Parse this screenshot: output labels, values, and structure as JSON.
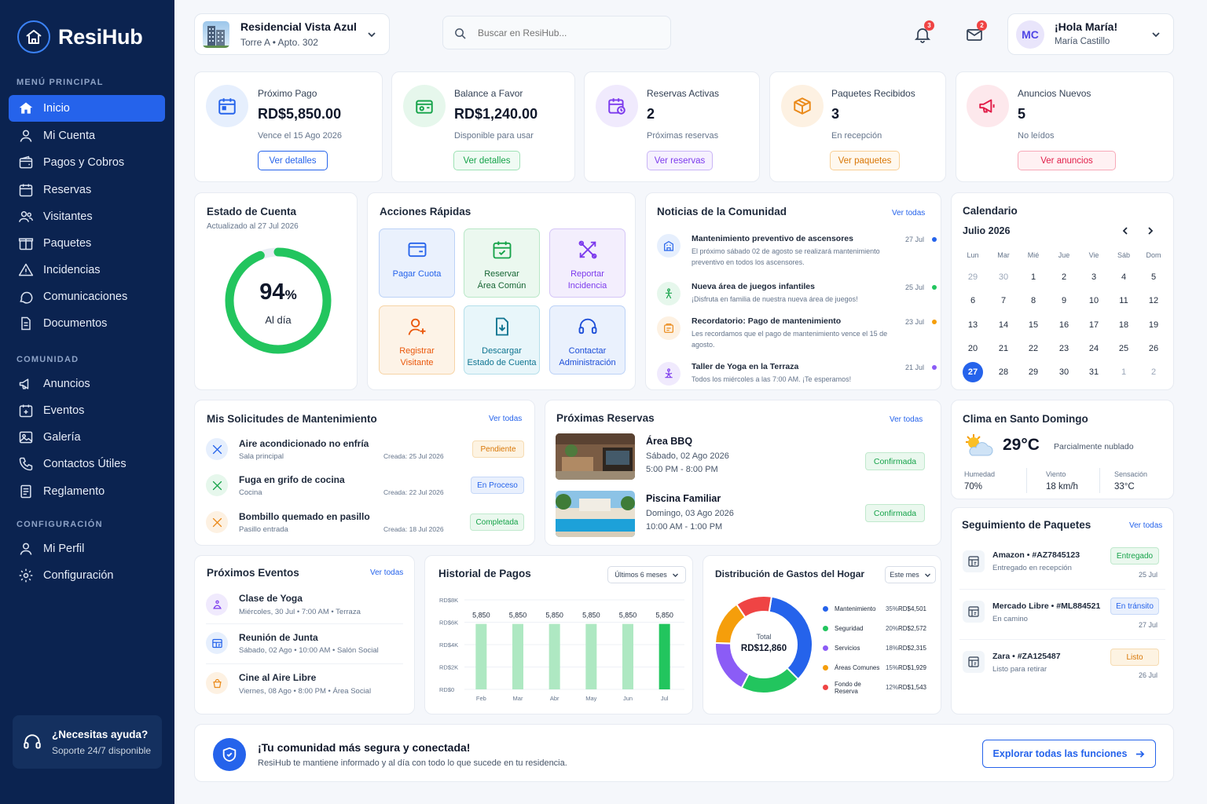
{
  "app": {
    "name": "ResiHub"
  },
  "sidebar": {
    "sections": {
      "main": "MENÚ PRINCIPAL",
      "community": "COMUNIDAD",
      "config": "CONFIGURACIÓN"
    },
    "main_items": [
      {
        "label": "Inicio",
        "icon": "home-icon",
        "active": true
      },
      {
        "label": "Mi Cuenta",
        "icon": "user-icon"
      },
      {
        "label": "Pagos y Cobros",
        "icon": "wallet-icon"
      },
      {
        "label": "Reservas",
        "icon": "calendar-icon"
      },
      {
        "label": "Visitantes",
        "icon": "users-icon"
      },
      {
        "label": "Paquetes",
        "icon": "package-icon"
      },
      {
        "label": "Incidencias",
        "icon": "warning-icon"
      },
      {
        "label": "Comunicaciones",
        "icon": "chat-icon"
      },
      {
        "label": "Documentos",
        "icon": "document-icon"
      }
    ],
    "community_items": [
      {
        "label": "Anuncios",
        "icon": "megaphone-icon"
      },
      {
        "label": "Eventos",
        "icon": "event-icon"
      },
      {
        "label": "Galería",
        "icon": "image-icon"
      },
      {
        "label": "Contactos Útiles",
        "icon": "phone-icon"
      },
      {
        "label": "Reglamento",
        "icon": "rules-icon"
      }
    ],
    "config_items": [
      {
        "label": "Mi Perfil",
        "icon": "profile-icon"
      },
      {
        "label": "Configuración",
        "icon": "gear-icon"
      }
    ],
    "help": {
      "title": "¿Necesitas ayuda?",
      "subtitle": "Soporte 24/7 disponible"
    }
  },
  "header": {
    "residence": {
      "name": "Residencial Vista Azul",
      "unit": "Torre A • Apto. 302"
    },
    "search_placeholder": "Buscar en ResiHub...",
    "notifications_count": "3",
    "messages_count": "2",
    "user": {
      "initials": "MC",
      "greeting": "¡Hola María!",
      "name": "María Castillo"
    }
  },
  "stats": [
    {
      "label": "Próximo Pago",
      "value": "RD$5,850.00",
      "sub": "Vence el 15 Ago 2026",
      "button": "Ver detalles",
      "color": "#2563eb"
    },
    {
      "label": "Balance a Favor",
      "value": "RD$1,240.00",
      "sub": "Disponible para usar",
      "button": "Ver detalles",
      "color": "#16a34a"
    },
    {
      "label": "Reservas Activas",
      "value": "2",
      "sub": "Próximas reservas",
      "button": "Ver reservas",
      "color": "#7c3aed"
    },
    {
      "label": "Paquetes Recibidos",
      "value": "3",
      "sub": "En recepción",
      "button": "Ver paquetes",
      "color": "#ea8a1a"
    },
    {
      "label": "Anuncios Nuevos",
      "value": "5",
      "sub": "No leídos",
      "button": "Ver anuncios",
      "color": "#e11d48"
    }
  ],
  "account_status": {
    "title": "Estado de Cuenta",
    "updated": "Actualizado al 27 Jul 2026",
    "percent": 94,
    "percent_text": "94",
    "percent_sign": "%",
    "caption": "Al día"
  },
  "quick_actions": {
    "title": "Acciones Rápidas",
    "items": [
      {
        "line1": "Pagar Cuota",
        "line2": "",
        "icon": "credit-card-icon"
      },
      {
        "line1": "Reservar",
        "line2": "Área Común",
        "icon": "calendar-check-icon"
      },
      {
        "line1": "Reportar",
        "line2": "Incidencia",
        "icon": "tools-icon"
      },
      {
        "line1": "Registrar",
        "line2": "Visitante",
        "icon": "user-plus-icon"
      },
      {
        "line1": "Descargar",
        "line2": "Estado de Cuenta",
        "icon": "download-icon"
      },
      {
        "line1": "Contactar",
        "line2": "Administración",
        "icon": "headset-icon"
      }
    ]
  },
  "news": {
    "title": "Noticias de la Comunidad",
    "link": "Ver todas",
    "items": [
      {
        "title": "Mantenimiento preventivo de ascensores",
        "body": "El próximo sábado 02 de agosto se realizará mantenimiento preventivo en todos los ascensores.",
        "date": "27 Jul",
        "color": "#2563eb"
      },
      {
        "title": "Nueva área de juegos infantiles",
        "body": "¡Disfruta en familia de nuestra nueva área de juegos!",
        "date": "25 Jul",
        "color": "#22c55e"
      },
      {
        "title": "Recordatorio: Pago de mantenimiento",
        "body": "Les recordamos que el pago de mantenimiento vence el 15 de agosto.",
        "date": "23 Jul",
        "color": "#f59e0b"
      },
      {
        "title": "Taller de Yoga en la Terraza",
        "body": "Todos los miércoles a las 7:00 AM. ¡Te esperamos!",
        "date": "21 Jul",
        "color": "#8b5cf6"
      }
    ]
  },
  "calendar": {
    "title": "Calendario",
    "month": "Julio 2026",
    "weekdays": [
      "Lun",
      "Mar",
      "Mié",
      "Jue",
      "Vie",
      "Sáb",
      "Dom"
    ],
    "days": [
      "29",
      "30",
      "1",
      "2",
      "3",
      "4",
      "5",
      "6",
      "7",
      "8",
      "9",
      "10",
      "11",
      "12",
      "13",
      "14",
      "15",
      "16",
      "17",
      "18",
      "19",
      "20",
      "21",
      "22",
      "23",
      "24",
      "25",
      "26",
      "27",
      "28",
      "29",
      "30",
      "31",
      "1",
      "2"
    ],
    "muted_indices": [
      0,
      1,
      33,
      34
    ],
    "today_index": 28
  },
  "maintenance": {
    "title": "Mis Solicitudes de Mantenimiento",
    "link": "Ver todas",
    "items": [
      {
        "title": "Aire acondicionado no enfría",
        "location": "Sala principal",
        "created": "Creada: 25 Jul 2026",
        "status": "Pendiente"
      },
      {
        "title": "Fuga en grifo de cocina",
        "location": "Cocina",
        "created": "Creada: 22 Jul 2026",
        "status": "En Proceso"
      },
      {
        "title": "Bombillo quemado en pasillo",
        "location": "Pasillo entrada",
        "created": "Creada: 18 Jul 2026",
        "status": "Completada"
      }
    ]
  },
  "reservations": {
    "title": "Próximas Reservas",
    "link": "Ver todas",
    "items": [
      {
        "name": "Área BBQ",
        "date": "Sábado, 02 Ago 2026",
        "time": "5:00 PM - 8:00 PM",
        "status": "Confirmada"
      },
      {
        "name": "Piscina Familiar",
        "date": "Domingo, 03 Ago 2026",
        "time": "10:00 AM - 1:00 PM",
        "status": "Confirmada"
      }
    ]
  },
  "weather": {
    "title": "Clima en Santo Domingo",
    "temp": "29°C",
    "desc": "Parcialmente nublado",
    "stats": [
      {
        "label": "Humedad",
        "value": "70%"
      },
      {
        "label": "Viento",
        "value": "18 km/h"
      },
      {
        "label": "Sensación",
        "value": "33°C"
      }
    ]
  },
  "events": {
    "title": "Próximos Eventos",
    "link": "Ver todas",
    "items": [
      {
        "title": "Clase de Yoga",
        "when": "Miércoles, 30 Jul • 7:00 AM • Terraza"
      },
      {
        "title": "Reunión de Junta",
        "when": "Sábado, 02 Ago • 10:00 AM • Salón Social"
      },
      {
        "title": "Cine al Aire Libre",
        "when": "Viernes, 08 Ago • 8:00 PM • Área Social"
      }
    ]
  },
  "payments_chart": {
    "title": "Historial de Pagos",
    "filter": "Últimos 6 meses"
  },
  "chart_data": [
    {
      "type": "bar",
      "title": "Historial de Pagos",
      "categories": [
        "Feb",
        "Mar",
        "Abr",
        "May",
        "Jun",
        "Jul"
      ],
      "values": [
        5850,
        5850,
        5850,
        5850,
        5850,
        5850
      ],
      "value_labels": [
        "5,850",
        "5,850",
        "5,850",
        "5,850",
        "5,850",
        "5,850"
      ],
      "yticks": [
        "RD$0",
        "RD$2K",
        "RD$4K",
        "RD$6K",
        "RD$8K"
      ],
      "ylim": [
        0,
        8000
      ],
      "highlight_index": 5
    },
    {
      "type": "pie",
      "title": "Distribución de Gastos del Hogar",
      "center_label": "Total",
      "center_value": "RD$12,860",
      "slices": [
        {
          "name": "Mantenimiento",
          "percent": 35,
          "percent_text": "35%",
          "amount": "RD$4,501",
          "color": "#2563eb"
        },
        {
          "name": "Seguridad",
          "percent": 20,
          "percent_text": "20%",
          "amount": "RD$2,572",
          "color": "#22c55e"
        },
        {
          "name": "Servicios",
          "percent": 18,
          "percent_text": "18%",
          "amount": "RD$2,315",
          "color": "#8b5cf6"
        },
        {
          "name": "Áreas Comunes",
          "percent": 15,
          "percent_text": "15%",
          "amount": "RD$1,929",
          "color": "#f59e0b"
        },
        {
          "name": "Fondo de Reserva",
          "percent": 12,
          "percent_text": "12%",
          "amount": "RD$1,543",
          "color": "#ef4444"
        }
      ]
    }
  ],
  "expenses": {
    "title": "Distribución de Gastos del Hogar",
    "filter": "Este mes"
  },
  "packages": {
    "title": "Seguimiento de Paquetes",
    "link": "Ver todas",
    "items": [
      {
        "title": "Amazon • #AZ7845123",
        "sub": "Entregado en recepción",
        "status": "Entregado",
        "date": "25 Jul"
      },
      {
        "title": "Mercado Libre • #ML884521",
        "sub": "En camino",
        "status": "En tránsito",
        "date": "27 Jul"
      },
      {
        "title": "Zara • #ZA125487",
        "sub": "Listo para retirar",
        "status": "Listo",
        "date": "26 Jul"
      }
    ]
  },
  "banner": {
    "title": "¡Tu comunidad más segura y conectada!",
    "text": "ResiHub te mantiene informado y al día con todo lo que sucede en tu residencia.",
    "button": "Explorar todas las funciones"
  }
}
